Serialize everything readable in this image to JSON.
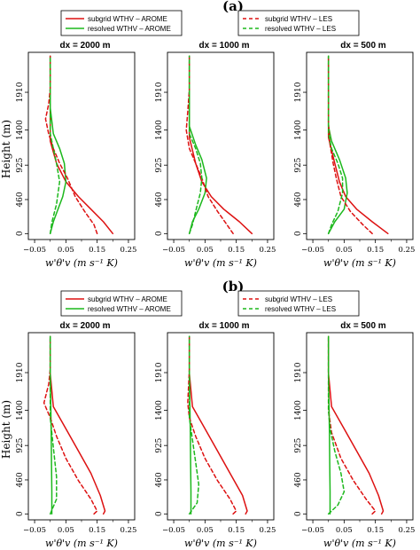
{
  "colors": {
    "red": "#dd1111",
    "green": "#1cb81c",
    "axis": "#000000"
  },
  "chart_data": [
    {
      "type": "line",
      "panel": "(a)",
      "ylabel": "Height (m)",
      "xlabel": "w'θ'v (m s⁻¹ K)",
      "xticks": [
        "−0.05",
        "0.05",
        "0.15",
        "0.25"
      ],
      "yticks": [
        "0",
        "460",
        "925",
        "1400",
        "1910"
      ],
      "xlim": [
        -0.07,
        0.27
      ],
      "ylim": [
        -80,
        2450
      ],
      "legend": {
        "left": [
          "subgrid WTHV – AROME",
          "resolved WTHV – AROME"
        ],
        "right": [
          "subgrid WTHV – LES",
          "resolved WTHV – LES"
        ]
      },
      "subplots": [
        {
          "title": "dx = 2000  m",
          "series": [
            {
              "name": "subgrid WTHV – AROME",
              "style": "solid",
              "color": "red",
              "x": [
                0.2,
                0.17,
                0.13,
                0.09,
                0.05,
                0.02,
                0.0,
                0.0,
                0.0,
                0.0
              ],
              "y": [
                0,
                160,
                330,
                500,
                700,
                950,
                1250,
                1450,
                1900,
                2400
              ]
            },
            {
              "name": "resolved WTHV – AROME",
              "style": "solid",
              "color": "green",
              "x": [
                0.0,
                0.01,
                0.025,
                0.04,
                0.05,
                0.045,
                0.03,
                0.01,
                0.0,
                0.0
              ],
              "y": [
                0,
                160,
                330,
                500,
                700,
                950,
                1150,
                1350,
                1700,
                2400
              ]
            },
            {
              "name": "subgrid WTHV – LES",
              "style": "dashed",
              "color": "red",
              "x": [
                0.15,
                0.14,
                0.11,
                0.08,
                0.055,
                0.03,
                0.01,
                -0.005,
                -0.015,
                -0.005,
                0.0,
                0.0
              ],
              "y": [
                0,
                120,
                300,
                500,
                750,
                950,
                1150,
                1350,
                1550,
                1750,
                1950,
                2400
              ]
            },
            {
              "name": "resolved WTHV – LES",
              "style": "dashed",
              "color": "green",
              "x": [
                0.0,
                0.005,
                0.02,
                0.03,
                0.02,
                0.01,
                0.0,
                0.0
              ],
              "y": [
                0,
                150,
                400,
                700,
                950,
                1150,
                1350,
                2400
              ]
            }
          ]
        },
        {
          "title": "dx = 1000  m",
          "series": [
            {
              "name": "subgrid WTHV – AROME",
              "style": "solid",
              "color": "red",
              "x": [
                0.2,
                0.16,
                0.11,
                0.07,
                0.04,
                0.02,
                0.0,
                0.0,
                0.0
              ],
              "y": [
                0,
                160,
                330,
                500,
                700,
                950,
                1300,
                1900,
                2400
              ]
            },
            {
              "name": "resolved WTHV – AROME",
              "style": "solid",
              "color": "green",
              "x": [
                0.0,
                0.01,
                0.03,
                0.05,
                0.055,
                0.04,
                0.02,
                0.0,
                0.0
              ],
              "y": [
                0,
                160,
                330,
                550,
                750,
                1000,
                1200,
                1450,
                2400
              ]
            },
            {
              "name": "subgrid WTHV – LES",
              "style": "dashed",
              "color": "red",
              "x": [
                0.14,
                0.12,
                0.09,
                0.06,
                0.04,
                0.02,
                0.0,
                -0.01,
                -0.005,
                0.0,
                0.0
              ],
              "y": [
                0,
                120,
                300,
                500,
                750,
                950,
                1150,
                1400,
                1650,
                1950,
                2400
              ]
            },
            {
              "name": "resolved WTHV – LES",
              "style": "dashed",
              "color": "green",
              "x": [
                0.0,
                0.01,
                0.02,
                0.035,
                0.04,
                0.035,
                0.02,
                0.0,
                0.0
              ],
              "y": [
                0,
                120,
                300,
                550,
                750,
                950,
                1150,
                1350,
                2400
              ]
            }
          ]
        },
        {
          "title": "dx = 500  m",
          "series": [
            {
              "name": "subgrid WTHV – AROME",
              "style": "solid",
              "color": "red",
              "x": [
                0.19,
                0.14,
                0.09,
                0.055,
                0.035,
                0.02,
                0.0,
                0.0,
                0.0
              ],
              "y": [
                0,
                160,
                330,
                500,
                700,
                950,
                1300,
                1900,
                2400
              ]
            },
            {
              "name": "resolved WTHV – AROME",
              "style": "solid",
              "color": "green",
              "x": [
                0.0,
                0.02,
                0.05,
                0.06,
                0.055,
                0.035,
                0.01,
                0.0,
                0.0
              ],
              "y": [
                0,
                160,
                330,
                550,
                750,
                1000,
                1250,
                1450,
                2400
              ]
            },
            {
              "name": "subgrid WTHV – LES",
              "style": "dashed",
              "color": "red",
              "x": [
                0.14,
                0.11,
                0.07,
                0.04,
                0.025,
                0.015,
                0.005,
                0.0,
                0.0
              ],
              "y": [
                0,
                120,
                300,
                500,
                750,
                950,
                1200,
                1500,
                2400
              ]
            },
            {
              "name": "resolved WTHV – LES",
              "style": "dashed",
              "color": "green",
              "x": [
                0.0,
                0.01,
                0.03,
                0.045,
                0.045,
                0.03,
                0.01,
                0.0,
                0.0
              ],
              "y": [
                0,
                120,
                300,
                550,
                750,
                950,
                1150,
                1350,
                2400
              ]
            }
          ]
        }
      ]
    },
    {
      "type": "line",
      "panel": "(b)",
      "ylabel": "Height (m)",
      "xlabel": "w'θ'v (m s⁻¹ K)",
      "xticks": [
        "−0.05",
        "0.05",
        "0.15",
        "0.25"
      ],
      "yticks": [
        "0",
        "460",
        "925",
        "1400",
        "1910"
      ],
      "xlim": [
        -0.07,
        0.27
      ],
      "ylim": [
        -80,
        2450
      ],
      "legend": {
        "left": [
          "subgrid WTHV – AROME",
          "resolved WTHV – AROME"
        ],
        "right": [
          "subgrid WTHV – LES",
          "resolved WTHV – LES"
        ]
      },
      "subplots": [
        {
          "title": "dx = 2000  m",
          "series": [
            {
              "name": "subgrid WTHV – AROME",
              "style": "solid",
              "color": "red",
              "x": [
                0.17,
                0.175,
                0.16,
                0.13,
                0.09,
                0.05,
                0.01,
                0.0,
                0.0
              ],
              "y": [
                0,
                40,
                250,
                550,
                850,
                1150,
                1450,
                1900,
                2400
              ]
            },
            {
              "name": "resolved WTHV – AROME",
              "style": "solid",
              "color": "green",
              "x": [
                0.005,
                0.005,
                0.004,
                0.003,
                0.002,
                0.0,
                0.0
              ],
              "y": [
                0,
                300,
                700,
                1100,
                1400,
                1900,
                2400
              ]
            },
            {
              "name": "subgrid WTHV – LES",
              "style": "dashed",
              "color": "red",
              "x": [
                0.14,
                0.15,
                0.13,
                0.09,
                0.05,
                0.02,
                0.0,
                -0.02,
                -0.005,
                0.0,
                0.0
              ],
              "y": [
                0,
                40,
                200,
                450,
                750,
                1050,
                1300,
                1500,
                1750,
                1950,
                2400
              ]
            },
            {
              "name": "resolved WTHV – LES",
              "style": "dashed",
              "color": "green",
              "x": [
                0.0,
                0.02,
                0.02,
                0.01,
                0.0,
                0.0
              ],
              "y": [
                0,
                200,
                500,
                900,
                1300,
                2400
              ]
            }
          ]
        },
        {
          "title": "dx = 1000  m",
          "series": [
            {
              "name": "subgrid WTHV – AROME",
              "style": "solid",
              "color": "red",
              "x": [
                0.18,
                0.185,
                0.17,
                0.13,
                0.09,
                0.05,
                0.01,
                0.0,
                0.0
              ],
              "y": [
                0,
                40,
                250,
                550,
                850,
                1150,
                1450,
                1900,
                2400
              ]
            },
            {
              "name": "resolved WTHV – AROME",
              "style": "solid",
              "color": "green",
              "x": [
                0.005,
                0.005,
                0.004,
                0.003,
                0.002,
                0.0,
                0.0
              ],
              "y": [
                0,
                300,
                700,
                1100,
                1400,
                1900,
                2400
              ]
            },
            {
              "name": "subgrid WTHV – LES",
              "style": "dashed",
              "color": "red",
              "x": [
                0.14,
                0.15,
                0.13,
                0.09,
                0.05,
                0.02,
                0.0,
                -0.005,
                0.0,
                0.0
              ],
              "y": [
                0,
                40,
                200,
                450,
                750,
                1050,
                1300,
                1500,
                1950,
                2400
              ]
            },
            {
              "name": "resolved WTHV – LES",
              "style": "dashed",
              "color": "green",
              "x": [
                0.0,
                0.025,
                0.03,
                0.02,
                0.01,
                0.0,
                0.0
              ],
              "y": [
                0,
                150,
                400,
                700,
                1000,
                1300,
                2400
              ]
            }
          ]
        },
        {
          "title": "dx = 500  m",
          "series": [
            {
              "name": "subgrid WTHV – AROME",
              "style": "solid",
              "color": "red",
              "x": [
                0.17,
                0.175,
                0.16,
                0.13,
                0.09,
                0.05,
                0.01,
                0.0,
                0.0
              ],
              "y": [
                0,
                40,
                250,
                550,
                850,
                1150,
                1450,
                1900,
                2400
              ]
            },
            {
              "name": "resolved WTHV – AROME",
              "style": "solid",
              "color": "green",
              "x": [
                0.005,
                0.005,
                0.004,
                0.003,
                0.002,
                0.0,
                0.0
              ],
              "y": [
                0,
                300,
                700,
                1100,
                1400,
                1900,
                2400
              ]
            },
            {
              "name": "subgrid WTHV – LES",
              "style": "dashed",
              "color": "red",
              "x": [
                0.14,
                0.15,
                0.12,
                0.08,
                0.04,
                0.01,
                0.0,
                0.0
              ],
              "y": [
                0,
                40,
                200,
                450,
                750,
                1100,
                1400,
                2400
              ]
            },
            {
              "name": "resolved WTHV – LES",
              "style": "dashed",
              "color": "green",
              "x": [
                0.0,
                0.03,
                0.05,
                0.04,
                0.02,
                0.005,
                0.0,
                0.0
              ],
              "y": [
                0,
                120,
                300,
                550,
                850,
                1150,
                1400,
                2400
              ]
            }
          ]
        }
      ]
    }
  ]
}
